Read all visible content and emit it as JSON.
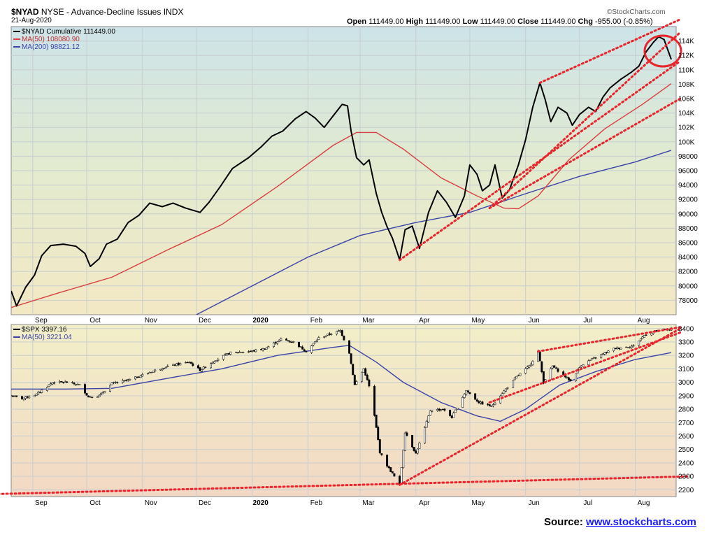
{
  "header": {
    "symbol": "$NYAD",
    "exchange": "NYSE",
    "description": "Advance-Decline Issues INDX",
    "date": "21-Aug-2020",
    "watermark": "©StockCharts.com",
    "ohlc": {
      "open_label": "Open",
      "open": "111449.00",
      "high_label": "High",
      "high": "111449.00",
      "low_label": "Low",
      "low": "111449.00",
      "close_label": "Close",
      "close": "111449.00",
      "chg_label": "Chg",
      "chg": "-955.00 (-0.85%)"
    }
  },
  "source": {
    "label": "Source:",
    "link_text": "www.stockcharts.com"
  },
  "colors": {
    "price": "#000000",
    "ma50": "#d64040",
    "ma200": "#3a44a8",
    "trend": "#e8242c",
    "circle": "#e8242c",
    "up_candle": "#ffffff",
    "down_candle": "#000000",
    "grid": "#c8cdd0"
  },
  "chart_data": [
    {
      "type": "line",
      "panel": "top",
      "legend": {
        "main": "$NYAD Cumulative 111449.00",
        "ma50": "MA(50) 108080.90",
        "ma200": "MA(200) 98821.12"
      },
      "x_tick_labels": [
        "Sep",
        "Oct",
        "Nov",
        "Dec",
        "2020",
        "Feb",
        "Mar",
        "Apr",
        "May",
        "Jun",
        "Jul",
        "Aug"
      ],
      "y_tick_labels": [
        "78000",
        "80000",
        "82000",
        "84000",
        "86000",
        "88000",
        "90000",
        "92000",
        "94000",
        "96000",
        "98000",
        "100K",
        "102K",
        "104K",
        "106K",
        "108K",
        "110K",
        "112K",
        "114K"
      ],
      "ylim": [
        76000,
        116000
      ],
      "x_range": [
        "2019-08-20",
        "2020-08-21"
      ],
      "grid": true,
      "series": [
        {
          "name": "$NYAD Cumulative",
          "points": [
            [
              "2019-08-20",
              79300
            ],
            [
              "2019-08-23",
              77200
            ],
            [
              "2019-08-28",
              79800
            ],
            [
              "2019-09-02",
              81500
            ],
            [
              "2019-09-06",
              84200
            ],
            [
              "2019-09-11",
              85600
            ],
            [
              "2019-09-18",
              85800
            ],
            [
              "2019-09-25",
              85500
            ],
            [
              "2019-09-30",
              84500
            ],
            [
              "2019-10-03",
              82700
            ],
            [
              "2019-10-08",
              83800
            ],
            [
              "2019-10-12",
              85800
            ],
            [
              "2019-10-18",
              86500
            ],
            [
              "2019-10-24",
              88800
            ],
            [
              "2019-10-30",
              89800
            ],
            [
              "2019-11-05",
              91500
            ],
            [
              "2019-11-12",
              91000
            ],
            [
              "2019-11-18",
              91500
            ],
            [
              "2019-11-25",
              90800
            ],
            [
              "2019-12-03",
              90200
            ],
            [
              "2019-12-08",
              91600
            ],
            [
              "2019-12-14",
              93700
            ],
            [
              "2019-12-21",
              96300
            ],
            [
              "2019-12-30",
              97800
            ],
            [
              "2020-01-06",
              99300
            ],
            [
              "2020-01-12",
              100800
            ],
            [
              "2020-01-18",
              101500
            ],
            [
              "2020-01-25",
              103200
            ],
            [
              "2020-01-31",
              104200
            ],
            [
              "2020-02-05",
              103300
            ],
            [
              "2020-02-10",
              102000
            ],
            [
              "2020-02-15",
              103600
            ],
            [
              "2020-02-20",
              105200
            ],
            [
              "2020-02-23",
              105000
            ],
            [
              "2020-02-25",
              101500
            ],
            [
              "2020-02-28",
              97800
            ],
            [
              "2020-03-03",
              96800
            ],
            [
              "2020-03-06",
              97500
            ],
            [
              "2020-03-10",
              92800
            ],
            [
              "2020-03-13",
              90200
            ],
            [
              "2020-03-16",
              88200
            ],
            [
              "2020-03-19",
              86600
            ],
            [
              "2020-03-23",
              83600
            ],
            [
              "2020-03-26",
              87800
            ],
            [
              "2020-03-30",
              88300
            ],
            [
              "2020-04-03",
              85200
            ],
            [
              "2020-04-08",
              90200
            ],
            [
              "2020-04-13",
              93200
            ],
            [
              "2020-04-18",
              91600
            ],
            [
              "2020-04-23",
              89500
            ],
            [
              "2020-04-28",
              92500
            ],
            [
              "2020-05-01",
              96800
            ],
            [
              "2020-05-05",
              95500
            ],
            [
              "2020-05-08",
              93200
            ],
            [
              "2020-05-12",
              94000
            ],
            [
              "2020-05-15",
              96800
            ],
            [
              "2020-05-19",
              92200
            ],
            [
              "2020-05-23",
              93300
            ],
            [
              "2020-05-28",
              96800
            ],
            [
              "2020-06-01",
              100300
            ],
            [
              "2020-06-05",
              104800
            ],
            [
              "2020-06-09",
              108200
            ],
            [
              "2020-06-12",
              105800
            ],
            [
              "2020-06-15",
              102800
            ],
            [
              "2020-06-19",
              104800
            ],
            [
              "2020-06-24",
              104000
            ],
            [
              "2020-06-27",
              102300
            ],
            [
              "2020-07-01",
              103800
            ],
            [
              "2020-07-06",
              104800
            ],
            [
              "2020-07-10",
              104200
            ],
            [
              "2020-07-14",
              106200
            ],
            [
              "2020-07-18",
              107500
            ],
            [
              "2020-07-24",
              108700
            ],
            [
              "2020-07-30",
              109700
            ],
            [
              "2020-08-03",
              110500
            ],
            [
              "2020-08-07",
              112500
            ],
            [
              "2020-08-11",
              113800
            ],
            [
              "2020-08-14",
              114600
            ],
            [
              "2020-08-17",
              114200
            ],
            [
              "2020-08-21",
              111449
            ]
          ]
        },
        {
          "name": "MA(50)",
          "points": [
            [
              "2019-08-20",
              77000
            ],
            [
              "2019-09-15",
              79000
            ],
            [
              "2019-10-15",
              81200
            ],
            [
              "2019-11-15",
              85000
            ],
            [
              "2019-12-15",
              88500
            ],
            [
              "2020-01-15",
              93800
            ],
            [
              "2020-02-15",
              99500
            ],
            [
              "2020-02-28",
              101300
            ],
            [
              "2020-03-10",
              101300
            ],
            [
              "2020-03-25",
              99000
            ],
            [
              "2020-04-15",
              95000
            ],
            [
              "2020-05-05",
              92500
            ],
            [
              "2020-05-20",
              90800
            ],
            [
              "2020-05-28",
              90700
            ],
            [
              "2020-06-08",
              92500
            ],
            [
              "2020-06-25",
              97500
            ],
            [
              "2020-07-15",
              101800
            ],
            [
              "2020-08-05",
              105200
            ],
            [
              "2020-08-21",
              108080
            ]
          ]
        },
        {
          "name": "MA(200)",
          "points": [
            [
              "2019-12-01",
              76000
            ],
            [
              "2020-01-01",
              80000
            ],
            [
              "2020-02-01",
              84000
            ],
            [
              "2020-03-01",
              87000
            ],
            [
              "2020-04-01",
              88800
            ],
            [
              "2020-05-01",
              90200
            ],
            [
              "2020-06-01",
              92800
            ],
            [
              "2020-07-01",
              95200
            ],
            [
              "2020-08-01",
              97200
            ],
            [
              "2020-08-21",
              98821
            ]
          ]
        }
      ],
      "trendlines": [
        {
          "from": [
            "2020-03-23",
            83600
          ],
          "to": [
            "2020-08-26",
            111200
          ]
        },
        {
          "from": [
            "2020-05-12",
            90800
          ],
          "to": [
            "2020-08-26",
            115200
          ]
        },
        {
          "from": [
            "2020-06-09",
            108200
          ],
          "to": [
            "2020-08-26",
            117000
          ]
        },
        {
          "from": [
            "2020-05-12",
            90800
          ],
          "to": [
            "2020-08-26",
            106000
          ]
        }
      ],
      "highlight_circle": {
        "center": [
          "2020-08-14",
          112600
        ],
        "note": "recent peak circled"
      }
    },
    {
      "type": "candlestick",
      "panel": "bottom",
      "legend": {
        "main": "$SPX 3397.16",
        "ma50": "MA(50) 3221.04"
      },
      "x_tick_labels": [
        "Sep",
        "Oct",
        "Nov",
        "Dec",
        "2020",
        "Feb",
        "Mar",
        "Apr",
        "May",
        "Jun",
        "Jul",
        "Aug"
      ],
      "y_tick_labels": [
        "2200",
        "2300",
        "2400",
        "2500",
        "2600",
        "2700",
        "2800",
        "2900",
        "3000",
        "3100",
        "3200",
        "3300",
        "3400"
      ],
      "ylim": [
        2150,
        3430
      ],
      "x_range": [
        "2019-08-20",
        "2020-08-21"
      ],
      "grid": true,
      "series": [
        {
          "name": "$SPX",
          "close_points": [
            [
              "2019-08-20",
              2900
            ],
            [
              "2019-08-26",
              2880
            ],
            [
              "2019-09-03",
              2910
            ],
            [
              "2019-09-12",
              3000
            ],
            [
              "2019-09-20",
              3000
            ],
            [
              "2019-09-27",
              2980
            ],
            [
              "2019-10-02",
              2890
            ],
            [
              "2019-10-08",
              2900
            ],
            [
              "2019-10-15",
              2990
            ],
            [
              "2019-10-25",
              3020
            ],
            [
              "2019-11-05",
              3075
            ],
            [
              "2019-11-15",
              3120
            ],
            [
              "2019-11-27",
              3150
            ],
            [
              "2019-12-03",
              3090
            ],
            [
              "2019-12-12",
              3170
            ],
            [
              "2019-12-20",
              3220
            ],
            [
              "2019-12-31",
              3230
            ],
            [
              "2020-01-08",
              3250
            ],
            [
              "2020-01-17",
              3320
            ],
            [
              "2020-01-24",
              3300
            ],
            [
              "2020-01-31",
              3230
            ],
            [
              "2020-02-07",
              3330
            ],
            [
              "2020-02-19",
              3385
            ],
            [
              "2020-02-24",
              3220
            ],
            [
              "2020-02-27",
              2980
            ],
            [
              "2020-03-03",
              3100
            ],
            [
              "2020-03-06",
              2970
            ],
            [
              "2020-03-09",
              2750
            ],
            [
              "2020-03-12",
              2480
            ],
            [
              "2020-03-16",
              2380
            ],
            [
              "2020-03-20",
              2300
            ],
            [
              "2020-03-23",
              2237
            ],
            [
              "2020-03-26",
              2630
            ],
            [
              "2020-04-01",
              2470
            ],
            [
              "2020-04-06",
              2660
            ],
            [
              "2020-04-09",
              2790
            ],
            [
              "2020-04-16",
              2800
            ],
            [
              "2020-04-21",
              2740
            ],
            [
              "2020-04-29",
              2940
            ],
            [
              "2020-05-06",
              2850
            ],
            [
              "2020-05-13",
              2820
            ],
            [
              "2020-05-19",
              2920
            ],
            [
              "2020-05-27",
              3040
            ],
            [
              "2020-06-03",
              3120
            ],
            [
              "2020-06-08",
              3230
            ],
            [
              "2020-06-11",
              3000
            ],
            [
              "2020-06-16",
              3120
            ],
            [
              "2020-06-26",
              3010
            ],
            [
              "2020-07-02",
              3130
            ],
            [
              "2020-07-10",
              3185
            ],
            [
              "2020-07-20",
              3250
            ],
            [
              "2020-07-31",
              3270
            ],
            [
              "2020-08-06",
              3350
            ],
            [
              "2020-08-12",
              3380
            ],
            [
              "2020-08-21",
              3397
            ]
          ]
        },
        {
          "name": "MA(50)",
          "points": [
            [
              "2019-08-20",
              2950
            ],
            [
              "2019-09-20",
              2950
            ],
            [
              "2019-10-15",
              2955
            ],
            [
              "2019-11-15",
              3030
            ],
            [
              "2019-12-15",
              3100
            ],
            [
              "2020-01-15",
              3200
            ],
            [
              "2020-02-15",
              3260
            ],
            [
              "2020-02-24",
              3275
            ],
            [
              "2020-03-10",
              3150
            ],
            [
              "2020-03-25",
              3000
            ],
            [
              "2020-04-15",
              2850
            ],
            [
              "2020-05-05",
              2750
            ],
            [
              "2020-05-18",
              2710
            ],
            [
              "2020-06-01",
              2800
            ],
            [
              "2020-06-20",
              2980
            ],
            [
              "2020-07-10",
              3080
            ],
            [
              "2020-08-01",
              3170
            ],
            [
              "2020-08-21",
              3221
            ]
          ]
        }
      ],
      "trendlines": [
        {
          "from": [
            "2020-03-23",
            2237
          ],
          "to": [
            "2020-08-26",
            3400
          ]
        },
        {
          "from": [
            "2020-06-08",
            3230
          ],
          "to": [
            "2020-08-26",
            3410
          ]
        },
        {
          "from": [
            "2020-05-12",
            2850
          ],
          "to": [
            "2020-08-26",
            3370
          ]
        },
        {
          "from": [
            "2019-08-01",
            2165
          ],
          "to": [
            "2020-08-31",
            2300
          ]
        }
      ]
    }
  ]
}
